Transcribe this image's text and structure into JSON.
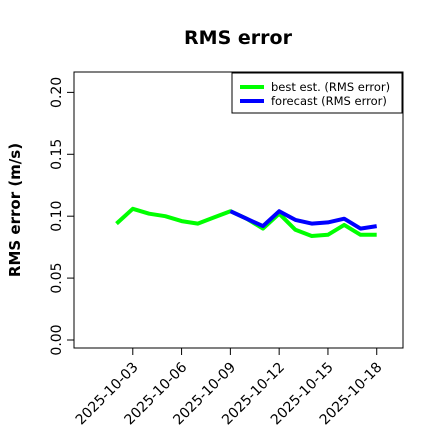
{
  "chart_data": {
    "type": "line",
    "title": "RMS error",
    "xlabel": "",
    "ylabel": "RMS error (m/s)",
    "x_ticks": [
      "2025-10-03",
      "2025-10-06",
      "2025-10-09",
      "2025-10-12",
      "2025-10-15",
      "2025-10-18"
    ],
    "x_tick_colors": [
      "#000000",
      "#000000",
      "#228B22",
      "#000000",
      "#000000",
      "#000000"
    ],
    "xlim": [
      "2025-09-30",
      "2025-10-19"
    ],
    "y_ticks": [
      "0.00",
      "0.05",
      "0.10",
      "0.15",
      "0.20"
    ],
    "ylim": [
      0.0,
      0.21
    ],
    "legend_position": "top-right",
    "grid": false,
    "series": [
      {
        "name": "best est. (RMS error)",
        "color": "#00ff00",
        "x": [
          "2025-10-02",
          "2025-10-03",
          "2025-10-04",
          "2025-10-05",
          "2025-10-06",
          "2025-10-07",
          "2025-10-08",
          "2025-10-09",
          "2025-10-10",
          "2025-10-11",
          "2025-10-12",
          "2025-10-13",
          "2025-10-14",
          "2025-10-15",
          "2025-10-16",
          "2025-10-17",
          "2025-10-18"
        ],
        "values": [
          0.094,
          0.106,
          0.102,
          0.1,
          0.096,
          0.094,
          0.099,
          0.104,
          0.098,
          0.09,
          0.102,
          0.089,
          0.084,
          0.085,
          0.093,
          0.085,
          0.085
        ]
      },
      {
        "name": "forecast (RMS error)",
        "color": "#0000ff",
        "x": [
          "2025-10-09",
          "2025-10-10",
          "2025-10-11",
          "2025-10-12",
          "2025-10-13",
          "2025-10-14",
          "2025-10-15",
          "2025-10-16",
          "2025-10-17",
          "2025-10-18"
        ],
        "values": [
          0.104,
          0.098,
          0.092,
          0.104,
          0.097,
          0.094,
          0.095,
          0.098,
          0.09,
          0.092
        ]
      }
    ]
  }
}
